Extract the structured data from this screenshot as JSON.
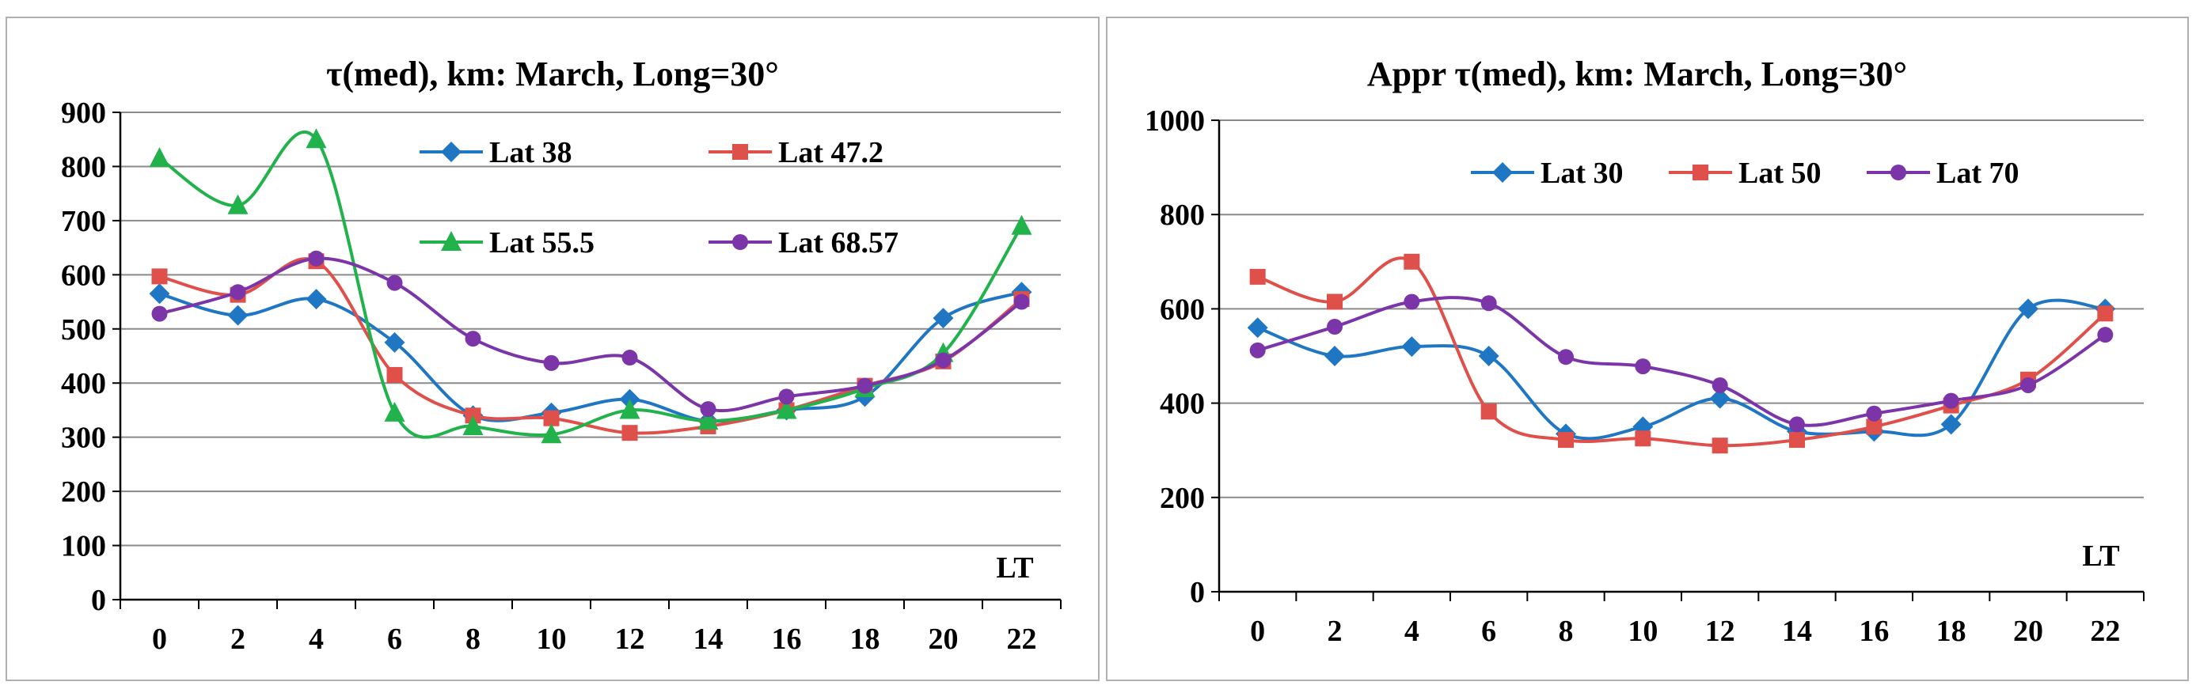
{
  "chart_data": [
    {
      "type": "line",
      "title": "τ(med), km: March, Long=30°",
      "xlabel": "LT",
      "ylabel": "",
      "x": [
        0,
        2,
        4,
        6,
        8,
        10,
        12,
        14,
        16,
        18,
        20,
        22
      ],
      "x_ticks": [
        "0",
        "2",
        "4",
        "6",
        "8",
        "10",
        "12",
        "14",
        "16",
        "18",
        "20",
        "22"
      ],
      "y_ticks": [
        "0",
        "100",
        "200",
        "300",
        "400",
        "500",
        "600",
        "700",
        "800",
        "900"
      ],
      "ylim": [
        0,
        900
      ],
      "legend_position": "upper-center-right",
      "series": [
        {
          "name": "Lat 38",
          "color": "#1f77c4",
          "marker": "diamond",
          "values": [
            565,
            525,
            555,
            475,
            340,
            345,
            370,
            330,
            350,
            375,
            520,
            568
          ]
        },
        {
          "name": "Lat 47.2",
          "color": "#e0504a",
          "marker": "square",
          "values": [
            597,
            563,
            625,
            415,
            340,
            335,
            308,
            320,
            350,
            395,
            440,
            555
          ]
        },
        {
          "name": "Lat 55.5",
          "color": "#22b24c",
          "marker": "triangle",
          "values": [
            815,
            728,
            850,
            345,
            320,
            305,
            350,
            330,
            350,
            390,
            455,
            690
          ]
        },
        {
          "name": "Lat 68.57",
          "color": "#7b35a8",
          "marker": "circle",
          "values": [
            528,
            568,
            630,
            585,
            482,
            437,
            447,
            352,
            375,
            395,
            442,
            550
          ]
        }
      ]
    },
    {
      "type": "line",
      "title": "Appr τ(med), km: March, Long=30°",
      "xlabel": "LT",
      "ylabel": "",
      "x": [
        0,
        2,
        4,
        6,
        8,
        10,
        12,
        14,
        16,
        18,
        20,
        22
      ],
      "x_ticks": [
        "0",
        "2",
        "4",
        "6",
        "8",
        "10",
        "12",
        "14",
        "16",
        "18",
        "20",
        "22"
      ],
      "y_ticks": [
        "0",
        "200",
        "400",
        "600",
        "800",
        "1000"
      ],
      "ylim": [
        0,
        1000
      ],
      "legend_position": "top",
      "series": [
        {
          "name": "Lat 30",
          "color": "#1f77c4",
          "marker": "diamond",
          "values": [
            560,
            500,
            520,
            500,
            335,
            350,
            410,
            340,
            340,
            355,
            600,
            600
          ]
        },
        {
          "name": "Lat 50",
          "color": "#e0504a",
          "marker": "square",
          "values": [
            668,
            615,
            700,
            382,
            322,
            325,
            310,
            322,
            350,
            395,
            450,
            590
          ]
        },
        {
          "name": "Lat 70",
          "color": "#7b35a8",
          "marker": "circle",
          "values": [
            512,
            562,
            615,
            612,
            498,
            478,
            438,
            355,
            378,
            405,
            438,
            545
          ]
        }
      ]
    }
  ]
}
